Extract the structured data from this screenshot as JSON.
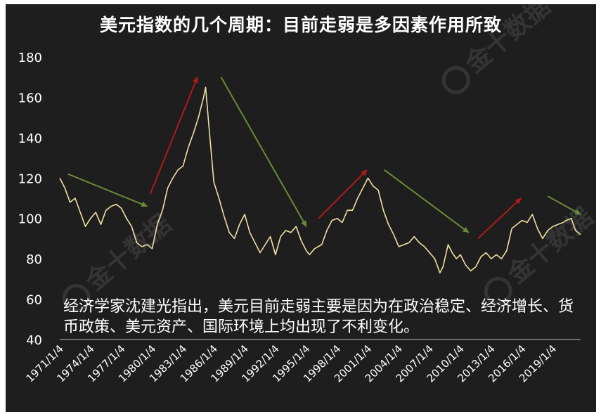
{
  "chart_data": {
    "type": "line",
    "title": "美元指数的几个周期：目前走弱是多因素作用所致",
    "annotation": "经济学家沈建光指出，美元目前走弱主要是因为在政治稳定、经济增长、货币政策、美元资产、国际环境上均出现了不利变化。",
    "watermark": "金十数据",
    "ylim": [
      40,
      180
    ],
    "y_ticks": [
      40,
      60,
      80,
      100,
      120,
      140,
      160,
      180
    ],
    "x_range": [
      1971.0,
      2021.7
    ],
    "x_tick_labels": [
      "1971/1/4",
      "1974/1/4",
      "1977/1/4",
      "1980/1/4",
      "1983/1/4",
      "1986/1/4",
      "1989/1/4",
      "1992/1/4",
      "1995/1/4",
      "1998/1/4",
      "2001/1/4",
      "2004/1/4",
      "2007/1/4",
      "2010/1/4",
      "2013/1/4",
      "2016/1/4",
      "2019/1/4"
    ],
    "x_tick_years": [
      1971,
      1974,
      1977,
      1980,
      1983,
      1986,
      1989,
      1992,
      1995,
      1998,
      2001,
      2004,
      2007,
      2010,
      2013,
      2016,
      2019
    ],
    "series": [
      {
        "color": "#f1dfa3",
        "x": [
          1971.0,
          1971.5,
          1972.0,
          1972.5,
          1973.0,
          1973.5,
          1974.0,
          1974.5,
          1975.0,
          1975.5,
          1976.0,
          1976.5,
          1977.0,
          1977.5,
          1978.0,
          1978.5,
          1979.0,
          1979.5,
          1980.0,
          1980.5,
          1981.0,
          1981.5,
          1982.0,
          1982.5,
          1983.0,
          1983.5,
          1984.0,
          1984.5,
          1985.0,
          1985.2,
          1985.5,
          1986.0,
          1986.5,
          1987.0,
          1987.5,
          1988.0,
          1988.5,
          1989.0,
          1989.5,
          1990.0,
          1990.5,
          1991.0,
          1991.5,
          1992.0,
          1992.5,
          1993.0,
          1993.5,
          1994.0,
          1994.5,
          1995.0,
          1995.3,
          1995.8,
          1996.5,
          1997.0,
          1997.5,
          1998.0,
          1998.5,
          1999.0,
          1999.5,
          2000.0,
          2000.5,
          2001.0,
          2001.5,
          2002.0,
          2002.5,
          2003.0,
          2003.5,
          2004.0,
          2004.5,
          2005.0,
          2005.5,
          2006.0,
          2006.5,
          2007.0,
          2007.5,
          2008.0,
          2008.3,
          2008.8,
          2009.2,
          2009.6,
          2010.0,
          2010.5,
          2011.0,
          2011.5,
          2012.0,
          2012.5,
          2013.0,
          2013.5,
          2014.0,
          2014.5,
          2015.0,
          2015.5,
          2016.0,
          2016.5,
          2017.0,
          2017.5,
          2018.0,
          2018.5,
          2019.0,
          2019.5,
          2020.0,
          2020.3,
          2020.8,
          2021.2,
          2021.7
        ],
        "y": [
          120,
          115,
          108,
          110,
          103,
          96,
          100,
          103,
          97,
          104,
          106,
          107,
          105,
          100,
          96,
          88,
          86,
          87,
          85,
          97,
          104,
          115,
          120,
          124,
          126,
          135,
          142,
          150,
          160,
          165,
          147,
          118,
          110,
          101,
          93,
          90,
          97,
          102,
          93,
          88,
          83,
          87,
          91,
          82,
          91,
          94,
          93,
          96,
          89,
          84,
          82,
          85,
          87,
          94,
          99,
          100,
          98,
          104,
          104,
          110,
          115,
          120,
          116,
          114,
          104,
          97,
          92,
          86,
          87,
          88,
          91,
          88,
          86,
          83,
          80,
          73,
          76,
          87,
          83,
          80,
          82,
          77,
          74,
          76,
          81,
          83,
          80,
          82,
          80,
          84,
          95,
          97,
          99,
          98,
          102,
          95,
          90,
          94,
          96,
          97,
          98,
          99,
          100,
          94,
          92
        ]
      }
    ],
    "trend_arrows": [
      {
        "color": "#6a8a3a",
        "from": [
          1971.8,
          122
        ],
        "to": [
          1979.5,
          106
        ]
      },
      {
        "color": "#b01a1a",
        "from": [
          1979.8,
          112
        ],
        "to": [
          1984.4,
          170
        ]
      },
      {
        "color": "#6a8a3a",
        "from": [
          1986.7,
          170
        ],
        "to": [
          1995.0,
          96
        ]
      },
      {
        "color": "#b01a1a",
        "from": [
          1996.2,
          100
        ],
        "to": [
          2000.9,
          124
        ]
      },
      {
        "color": "#6a8a3a",
        "from": [
          2002.6,
          124
        ],
        "to": [
          2010.8,
          93
        ]
      },
      {
        "color": "#b01a1a",
        "from": [
          2011.7,
          90
        ],
        "to": [
          2015.9,
          110
        ]
      },
      {
        "color": "#6a8a3a",
        "from": [
          2018.5,
          111
        ],
        "to": [
          2021.7,
          102
        ]
      }
    ]
  }
}
